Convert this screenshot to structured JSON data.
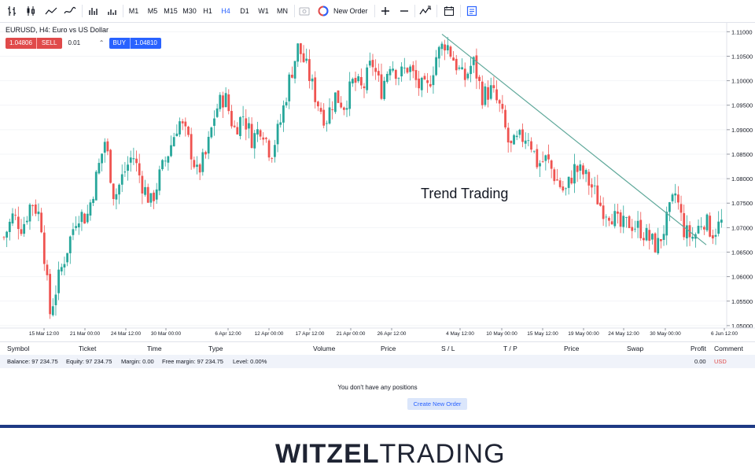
{
  "toolbar": {
    "timeframes": [
      "M1",
      "M5",
      "M15",
      "M30",
      "H1",
      "H4",
      "D1",
      "W1",
      "MN"
    ],
    "active_timeframe": "H4",
    "new_order_label": "New Order",
    "icons": [
      "bar-chart-icon",
      "candles-icon",
      "area-icon",
      "line-icon",
      "volume-bars-icon",
      "volume-icon",
      "screenshot-icon",
      "zoom-in-icon",
      "zoom-out-icon",
      "indicators-icon",
      "calendar-icon",
      "panel-icon"
    ]
  },
  "chart": {
    "title": "EURUSD, H4: Euro vs US Dollar",
    "sell_price": "1.04806",
    "sell_label": "SELL",
    "lot": "0.01",
    "buy_label": "BUY",
    "buy_price": "1.04810",
    "annotation": "Trend Trading",
    "colors": {
      "up": "#26a69a",
      "down": "#ef5350",
      "trendline": "#5fa89a",
      "sell": "#e04a4a",
      "buy": "#2962ff"
    }
  },
  "chart_data": {
    "type": "candlestick",
    "title": "EURUSD, H4: Euro vs US Dollar",
    "x_tick_labels": [
      "15 Mar 12:00",
      "21 Mar 00:00",
      "24 Mar 12:00",
      "30 Mar 00:00",
      "6 Apr 12:00",
      "12 Apr 00:00",
      "17 Apr 12:00",
      "21 Apr 00:00",
      "26 Apr 12:00",
      "4 May 12:00",
      "10 May 00:00",
      "15 May 12:00",
      "19 May 00:00",
      "24 May 12:00",
      "30 May 00:00",
      "6 Jun 12:00"
    ],
    "y_tick_labels": [
      "1.11000",
      "1.10500",
      "1.10000",
      "1.09500",
      "1.09000",
      "1.08500",
      "1.08000",
      "1.07500",
      "1.07000",
      "1.06500",
      "1.06000",
      "1.05500",
      "1.05000"
    ],
    "ylim": [
      1.0495,
      1.1115
    ],
    "close_path": [
      1.068,
      1.0725,
      1.07,
      1.0755,
      1.072,
      1.0525,
      1.06,
      1.0665,
      1.073,
      1.072,
      1.08,
      1.088,
      1.076,
      1.081,
      1.085,
      1.079,
      1.075,
      1.081,
      1.086,
      1.092,
      1.088,
      1.081,
      1.085,
      1.094,
      1.097,
      1.09,
      1.093,
      1.088,
      1.091,
      1.085,
      1.091,
      1.1,
      1.107,
      1.102,
      1.096,
      1.092,
      1.097,
      1.095,
      1.1,
      1.098,
      1.104,
      1.098,
      1.104,
      1.101,
      1.103,
      1.099,
      1.098,
      1.105,
      1.108,
      1.104,
      1.1,
      1.104,
      1.097,
      1.098,
      1.094,
      1.086,
      1.088,
      1.089,
      1.083,
      1.084,
      1.08,
      1.077,
      1.082,
      1.081,
      1.078,
      1.074,
      1.073,
      1.07,
      1.071,
      1.07,
      1.068,
      1.066,
      1.071,
      1.077,
      1.069,
      1.068,
      1.072,
      1.069,
      1.071
    ],
    "trendline": {
      "start": {
        "x": "26 Apr 12:00",
        "y": 1.1095
      },
      "end": {
        "x": "6 Jun 12:00",
        "y": 1.0665
      }
    },
    "annotations": [
      "Trend Trading"
    ]
  },
  "table": {
    "columns": [
      "Symbol",
      "Ticket",
      "Time",
      "Type",
      "Volume",
      "Price",
      "S / L",
      "T / P",
      "Price",
      "Swap",
      "Profit",
      "Comment"
    ],
    "balance": "Balance: 97 234.75",
    "equity": "Equity: 97 234.75",
    "margin": "Margin: 0.00",
    "free_margin": "Free margin: 97 234.75",
    "level": "Level: 0.00%",
    "profit": "0.00",
    "currency": "USD",
    "empty_message": "You don't have any positions",
    "create_button": "Create New Order"
  },
  "brand": {
    "part1": "WITZEL",
    "part2": "TRADING"
  }
}
